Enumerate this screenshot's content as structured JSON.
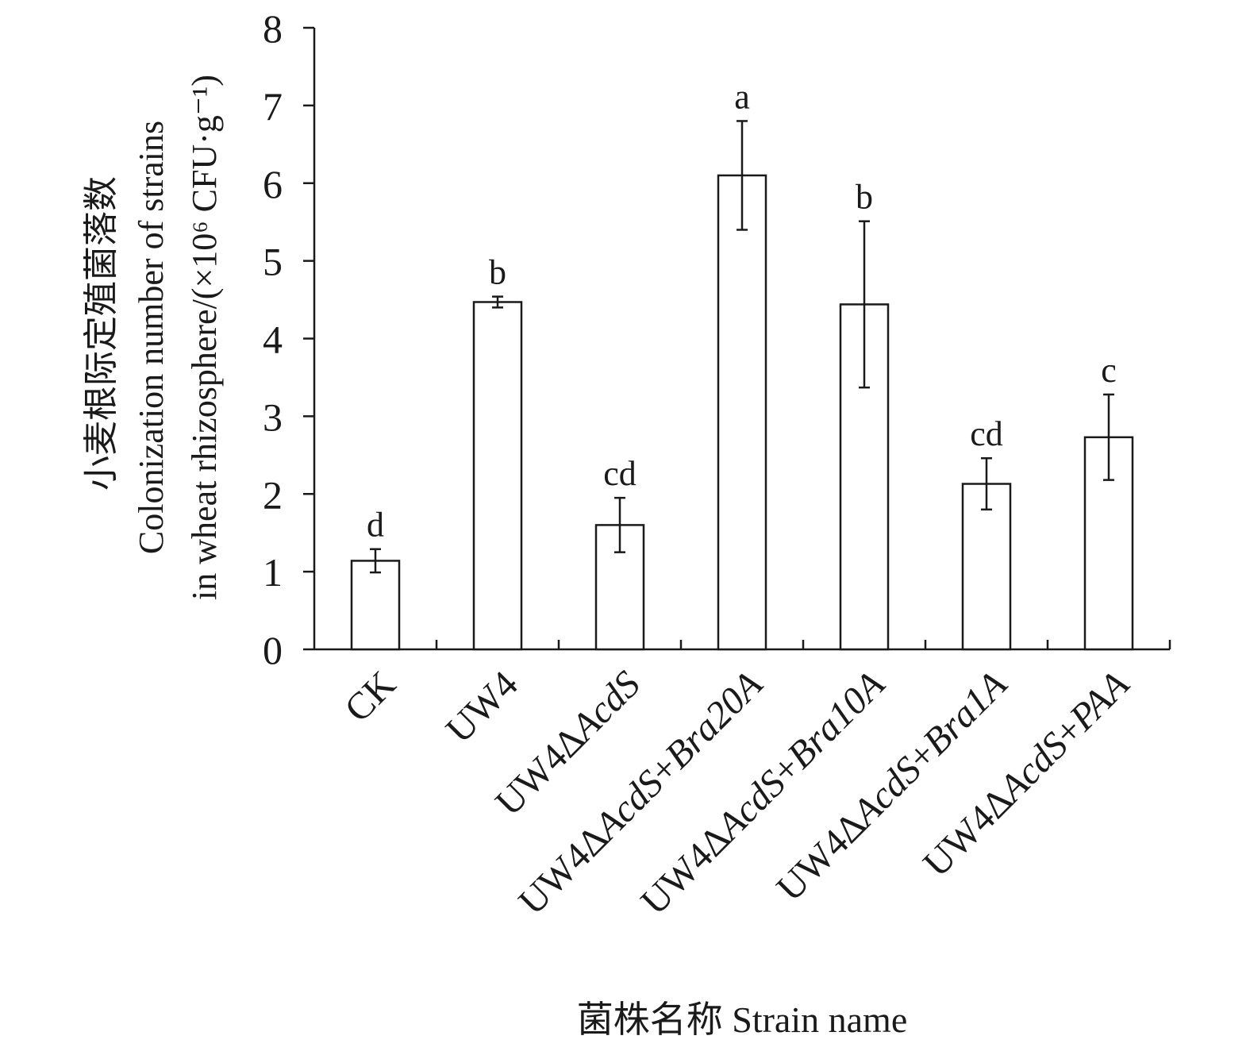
{
  "chart_data": {
    "type": "bar",
    "title": "",
    "xlabel": "菌株名称 Strain name",
    "ylabel_lines": [
      "小麦根际定殖菌落数",
      "Colonization number of strains",
      "in wheat rhizosphere/(×10⁶ CFU·g⁻¹)"
    ],
    "ylim": [
      0,
      8
    ],
    "yticks": [
      0,
      1,
      2,
      3,
      4,
      5,
      6,
      7,
      8
    ],
    "grid": false,
    "legend": "none",
    "bar_fill": "#ffffff",
    "bar_stroke": "#1a1a1a",
    "categories": [
      "CK",
      "UW4",
      "UW4ΔAcdS",
      "UW4ΔAcdS+Bra20A",
      "UW4ΔAcdS+Bra10A",
      "UW4ΔAcdS+Bra1A",
      "UW4ΔAcdS+PAA"
    ],
    "values": [
      1.14,
      4.47,
      1.6,
      6.1,
      4.44,
      2.13,
      2.73
    ],
    "errors": [
      0.15,
      0.07,
      0.35,
      0.7,
      1.07,
      0.33,
      0.55
    ],
    "significance_letters": [
      "d",
      "b",
      "cd",
      "a",
      "b",
      "cd",
      "c"
    ]
  }
}
